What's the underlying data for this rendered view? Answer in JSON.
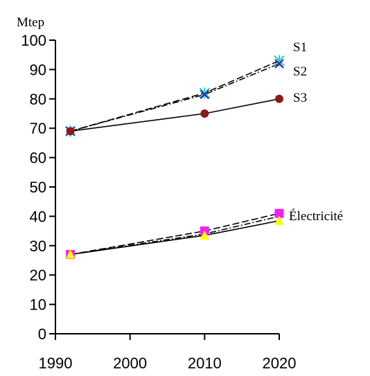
{
  "chart_data": {
    "type": "line",
    "title": "",
    "xlabel": "",
    "ylabel": "Mtep",
    "xlim": [
      1990,
      2020
    ],
    "ylim": [
      0,
      100
    ],
    "x_ticks": [
      1990,
      2000,
      2010,
      2020
    ],
    "y_ticks": [
      0,
      10,
      20,
      30,
      40,
      50,
      60,
      70,
      80,
      90,
      100
    ],
    "grid": false,
    "series_labels": [
      "S1",
      "S2",
      "S3",
      "Électricité"
    ],
    "series": [
      {
        "group": "total",
        "x": [
          1992,
          2010,
          2020
        ],
        "values": [
          69,
          82,
          93
        ],
        "style": "dashed",
        "color": "#000000",
        "marker": "star",
        "marker_color": "#33cccc"
      },
      {
        "group": "total",
        "x": [
          1992,
          2010,
          2020
        ],
        "values": [
          69,
          81.5,
          92
        ],
        "style": "dash-dot",
        "color": "#000000",
        "marker": "x",
        "marker_color": "#3333aa"
      },
      {
        "group": "total",
        "x": [
          1992,
          2010,
          2020
        ],
        "values": [
          69,
          75,
          80
        ],
        "style": "solid",
        "color": "#000000",
        "marker": "circle",
        "marker_color": "#8b1a1a"
      },
      {
        "group": "electricity",
        "x": [
          1992,
          2010,
          2020
        ],
        "values": [
          27,
          35,
          41
        ],
        "style": "dashed",
        "color": "#000000",
        "marker": "square",
        "marker_color": "#ee22ee"
      },
      {
        "group": "electricity",
        "x": [
          1992,
          2010,
          2020
        ],
        "values": [
          27,
          34,
          40
        ],
        "style": "dash-dot",
        "color": "#000000",
        "marker": "none",
        "marker_color": "#000000"
      },
      {
        "group": "electricity",
        "x": [
          1992,
          2010,
          2020
        ],
        "values": [
          27,
          33.5,
          38.5
        ],
        "style": "solid",
        "color": "#000000",
        "marker": "triangle",
        "marker_color": "#ffff00"
      }
    ]
  }
}
